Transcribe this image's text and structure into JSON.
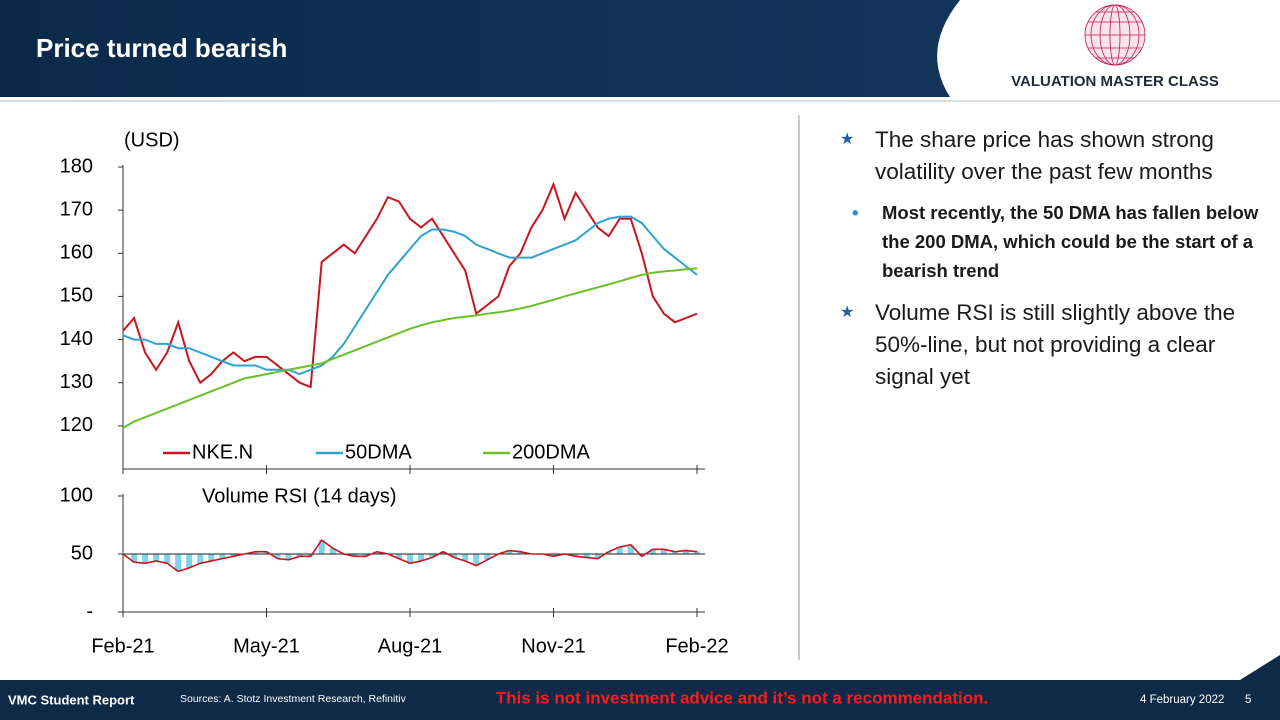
{
  "slide": {
    "title": "Price turned bearish",
    "logo": "VALUATION MASTER CLASS",
    "bullets": [
      {
        "text": "The share price has shown strong volatility over the past few months",
        "sub": [
          "Most recently, the 50 DMA has fallen below the 200 DMA, which could be the start of a bearish trend"
        ]
      },
      {
        "text": "Volume RSI is still slightly above the 50%-line, but not providing a clear signal yet",
        "sub": []
      }
    ],
    "footer": {
      "report": "VMC Student Report",
      "sources": "Sources: A. Stotz Investment Research, Refinitiv",
      "disclaimer": "This is not investment advice and it’s not a recommendation.",
      "date": "4 February 2022",
      "page": "5"
    }
  },
  "chart_data": [
    {
      "type": "line",
      "annotation": "(USD)",
      "ylim": [
        110,
        180
      ],
      "yticks": [
        120,
        130,
        140,
        150,
        160,
        170,
        180
      ],
      "legend": "bottom",
      "series": [
        {
          "name": "NKE.N",
          "color": "#c8161d",
          "values": [
            142,
            145,
            137,
            133,
            137,
            144,
            135,
            130,
            132,
            135,
            137,
            135,
            136,
            136,
            134,
            132,
            130,
            129,
            158,
            160,
            162,
            160,
            164,
            168,
            173,
            172,
            168,
            166,
            168,
            164,
            160,
            156,
            146,
            148,
            150,
            157,
            160,
            166,
            170,
            176,
            168,
            174,
            170,
            166,
            164,
            168,
            168,
            160,
            150,
            146,
            144,
            145,
            146
          ]
        },
        {
          "name": "50DMA",
          "color": "#2ea3cf",
          "values": [
            141,
            140,
            140,
            139,
            139,
            138,
            138,
            137,
            136,
            135,
            134,
            134,
            134,
            133,
            133,
            133,
            132,
            133,
            134,
            136,
            139,
            143,
            147,
            151,
            155,
            158,
            161,
            164,
            165.5,
            165.5,
            165,
            164,
            162,
            161,
            160,
            159,
            159,
            159,
            160,
            161,
            162,
            163,
            165,
            167,
            168,
            168.5,
            168.5,
            167,
            164,
            161,
            159,
            157,
            155
          ]
        },
        {
          "name": "200DMA",
          "color": "#6cbf2b",
          "values": [
            119.5,
            121,
            122,
            123,
            124,
            125,
            126,
            127,
            128,
            129,
            130,
            131,
            131.5,
            132,
            132.5,
            133,
            133.5,
            134,
            134.5,
            135.5,
            136.5,
            137.5,
            138.5,
            139.5,
            140.5,
            141.5,
            142.5,
            143.3,
            144,
            144.5,
            145,
            145.3,
            145.6,
            146,
            146.3,
            146.7,
            147.2,
            147.8,
            148.5,
            149.2,
            150,
            150.7,
            151.4,
            152.1,
            152.8,
            153.5,
            154.3,
            155,
            155.5,
            155.8,
            156,
            156.3,
            156.5
          ]
        }
      ]
    },
    {
      "type": "line",
      "title": "Volume RSI (14 days)",
      "ylim": [
        0,
        100
      ],
      "yticks": [
        {
          "value": 0,
          "label": "-"
        },
        50,
        100
      ],
      "baseline": 50,
      "color": "#c8161d",
      "bar_color": "#7fd3e6",
      "categories": [
        "Feb-21",
        null,
        null,
        null,
        null,
        null,
        null,
        null,
        null,
        null,
        null,
        null,
        null,
        "May-21",
        null,
        null,
        null,
        null,
        null,
        null,
        null,
        null,
        null,
        null,
        null,
        null,
        "Aug-21",
        null,
        null,
        null,
        null,
        null,
        null,
        null,
        null,
        null,
        null,
        null,
        null,
        "Nov-21",
        null,
        null,
        null,
        null,
        null,
        null,
        null,
        null,
        null,
        null,
        null,
        null,
        "Feb-22"
      ],
      "values": [
        50,
        43,
        42,
        44,
        42,
        35,
        38,
        42,
        44,
        46,
        48,
        50,
        52,
        52,
        46,
        45,
        48,
        48,
        62,
        55,
        50,
        48,
        48,
        52,
        50,
        46,
        42,
        44,
        47,
        52,
        47,
        44,
        40,
        45,
        50,
        53,
        52,
        50,
        50,
        48,
        50,
        48,
        47,
        46,
        52,
        56,
        58,
        48,
        54,
        54,
        52,
        53,
        52
      ]
    }
  ]
}
